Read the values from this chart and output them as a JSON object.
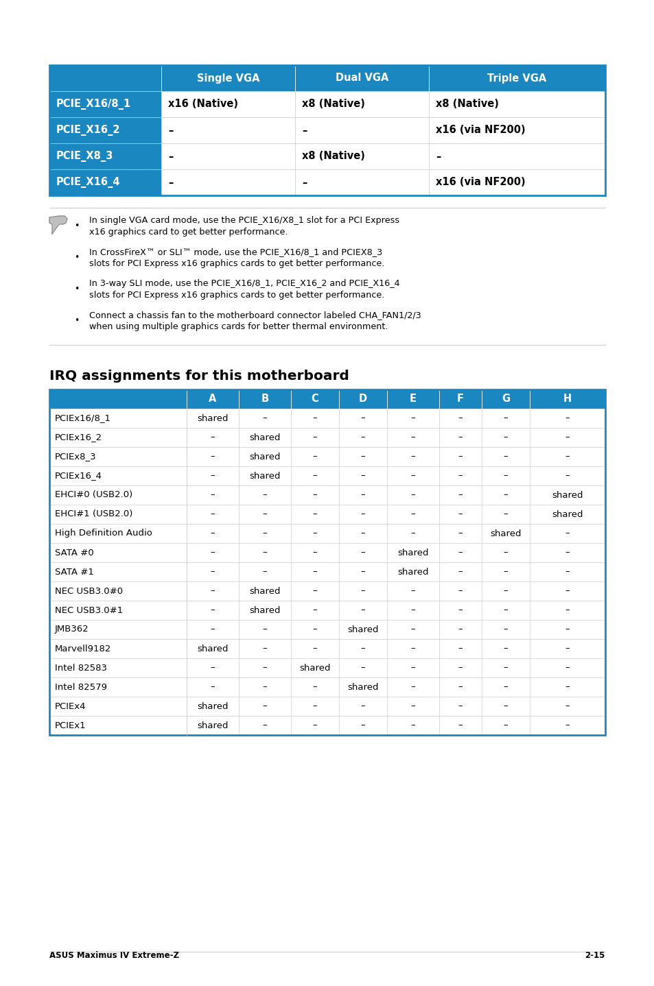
{
  "page_bg": "#ffffff",
  "header_bg": "#1a87c0",
  "border_color": "#1a87c0",
  "grid_color": "#cccccc",
  "text_color": "#000000",
  "table1_headers": [
    "",
    "Single VGA",
    "Dual VGA",
    "Triple VGA"
  ],
  "table1_rows": [
    [
      "PCIE_X16/8_1",
      "x16 (Native)",
      "x8 (Native)",
      "x8 (Native)"
    ],
    [
      "PCIE_X16_2",
      "–",
      "–",
      "x16 (via NF200)"
    ],
    [
      "PCIE_X8_3",
      "–",
      "x8 (Native)",
      "–"
    ],
    [
      "PCIE_X16_4",
      "–",
      "–",
      "x16 (via NF200)"
    ]
  ],
  "note_text": [
    "In single VGA card mode, use the PCIE_X16/X8_1 slot for a PCI Express\nx16 graphics card to get better performance.",
    "In CrossFireX™ or SLI™ mode, use the PCIE_X16/8_1 and PCIEX8_3\nslots for PCI Express x16 graphics cards to get better performance.",
    "In 3-way SLI mode, use the PCIE_X16/8_1, PCIE_X16_2 and PCIE_X16_4\nslots for PCI Express x16 graphics cards to get better performance.",
    "Connect a chassis fan to the motherboard connector labeled CHA_FAN1/2/3\nwhen using multiple graphics cards for better thermal environment."
  ],
  "irq_title": "IRQ assignments for this motherboard",
  "irq_headers": [
    "",
    "A",
    "B",
    "C",
    "D",
    "E",
    "F",
    "G",
    "H"
  ],
  "irq_rows": [
    [
      "PCIEx16/8_1",
      "shared",
      "–",
      "–",
      "–",
      "–",
      "–",
      "–",
      "–"
    ],
    [
      "PCIEx16_2",
      "–",
      "shared",
      "–",
      "–",
      "–",
      "–",
      "–",
      "–"
    ],
    [
      "PCIEx8_3",
      "–",
      "shared",
      "–",
      "–",
      "–",
      "–",
      "–",
      "–"
    ],
    [
      "PCIEx16_4",
      "–",
      "shared",
      "–",
      "–",
      "–",
      "–",
      "–",
      "–"
    ],
    [
      "EHCI#0 (USB2.0)",
      "–",
      "–",
      "–",
      "–",
      "–",
      "–",
      "–",
      "shared"
    ],
    [
      "EHCI#1 (USB2.0)",
      "–",
      "–",
      "–",
      "–",
      "–",
      "–",
      "–",
      "shared"
    ],
    [
      "High Definition Audio",
      "–",
      "–",
      "–",
      "–",
      "–",
      "–",
      "shared",
      "–"
    ],
    [
      "SATA #0",
      "–",
      "–",
      "–",
      "–",
      "shared",
      "–",
      "–",
      "–"
    ],
    [
      "SATA #1",
      "–",
      "–",
      "–",
      "–",
      "shared",
      "–",
      "–",
      "–"
    ],
    [
      "NEC USB3.0#0",
      "–",
      "shared",
      "–",
      "–",
      "–",
      "–",
      "–",
      "–"
    ],
    [
      "NEC USB3.0#1",
      "–",
      "shared",
      "–",
      "–",
      "–",
      "–",
      "–",
      "–"
    ],
    [
      "JMB362",
      "–",
      "–",
      "–",
      "shared",
      "–",
      "–",
      "–",
      "–"
    ],
    [
      "Marvell9182",
      "shared",
      "–",
      "–",
      "–",
      "–",
      "–",
      "–",
      "–"
    ],
    [
      "Intel 82583",
      "–",
      "–",
      "shared",
      "–",
      "–",
      "–",
      "–",
      "–"
    ],
    [
      "Intel 82579",
      "–",
      "–",
      "–",
      "shared",
      "–",
      "–",
      "–",
      "–"
    ],
    [
      "PCIEx4",
      "shared",
      "–",
      "–",
      "–",
      "–",
      "–",
      "–",
      "–"
    ],
    [
      "PCIEx1",
      "shared",
      "–",
      "–",
      "–",
      "–",
      "–",
      "–",
      "–"
    ]
  ],
  "footer_left": "ASUS Maximus IV Extreme-Z",
  "footer_right": "2-15"
}
